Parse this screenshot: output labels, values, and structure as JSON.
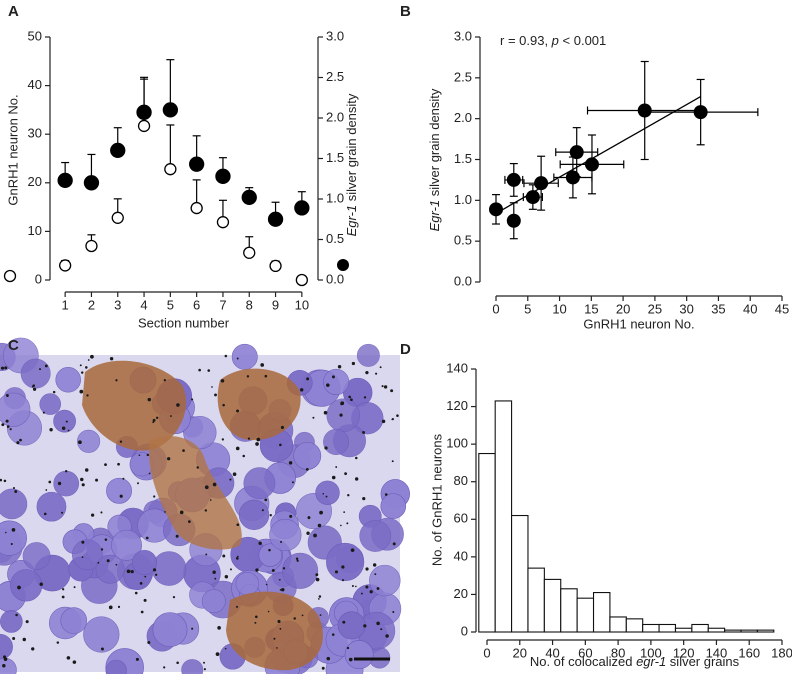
{
  "chart_data": [
    {
      "type": "dual-errorbar",
      "label": "A",
      "x": [
        1,
        2,
        3,
        4,
        5,
        6,
        7,
        8,
        9,
        10
      ],
      "xlim": [
        0.5,
        10.5
      ],
      "xticks": [
        1,
        2,
        3,
        4,
        5,
        6,
        7,
        8,
        9,
        10
      ],
      "xlabel": "Section number",
      "ylabel": "GnRH1 neuron No.",
      "ylim": [
        0,
        50
      ],
      "yticks": [
        0,
        10,
        20,
        30,
        40,
        50
      ],
      "y2label": [
        {
          "text": "Egr-1",
          "italic": true
        },
        {
          "text": " silver grain density"
        }
      ],
      "y2lim": [
        0,
        3
      ],
      "y2ticks": [
        {
          "value": 0,
          "label": "0.0"
        },
        0.5,
        {
          "value": 1,
          "label": "1.0"
        },
        1.5,
        {
          "value": 2,
          "label": "2.0"
        },
        2.5,
        {
          "value": 3,
          "label": "3.0"
        }
      ],
      "series": [
        {
          "marker": "open",
          "color": "#000000",
          "values": [
            3,
            7,
            12.8,
            31.7,
            22.8,
            14.8,
            11.9,
            5.6,
            2.9,
            0
          ],
          "errors": [
            1,
            2.3,
            3.9,
            10,
            9.1,
            5.8,
            4.5,
            3.3,
            1,
            0
          ]
        },
        {
          "marker": "filled",
          "color": "#000000",
          "axis": "y2",
          "values": [
            1.23,
            1.2,
            1.6,
            2.07,
            2.1,
            1.43,
            1.28,
            1.02,
            0.75,
            0.89
          ],
          "errors": [
            0.22,
            0.35,
            0.28,
            0.41,
            0.62,
            0.35,
            0.23,
            0.12,
            0.21,
            0.2
          ]
        }
      ]
    },
    {
      "type": "scatter",
      "label": "B",
      "color": "#000000",
      "annotation": [
        {
          "text": "r = 0.93, "
        },
        {
          "text": "p",
          "italic": true
        },
        {
          "text": " < 0.001"
        }
      ],
      "x": [
        0,
        2.8,
        2.8,
        5.8,
        7.1,
        12.1,
        12.7,
        15.1,
        23.4,
        32.2
      ],
      "xerr": [
        0,
        1.4,
        0,
        1.5,
        2.7,
        3,
        3.3,
        5,
        9,
        9
      ],
      "values": [
        0.89,
        1.25,
        0.75,
        1.04,
        1.21,
        1.28,
        1.59,
        1.44,
        2.1,
        2.08
      ],
      "errors": [
        0.18,
        0.2,
        0.22,
        0.15,
        0.33,
        0.25,
        0.3,
        0.36,
        0.6,
        0.4
      ],
      "fit": {
        "x": [
          0,
          32.2
        ],
        "values": [
          0.84,
          2.27
        ]
      },
      "xlabel": "GnRH1 neuron No.",
      "xlim": [
        0,
        45
      ],
      "xticks": [
        0,
        5,
        10,
        15,
        20,
        25,
        30,
        35,
        40,
        45
      ],
      "ylabel": [
        {
          "text": "Egr-1",
          "italic": true
        },
        {
          "text": " silver grain density"
        }
      ],
      "ylim": [
        0,
        3
      ],
      "yticks": [
        {
          "value": 0,
          "label": "0.0"
        },
        0.5,
        {
          "value": 1,
          "label": "1.0"
        },
        1.5,
        {
          "value": 2,
          "label": "2.0"
        },
        2.5,
        {
          "value": 3,
          "label": "3.0"
        }
      ]
    },
    {
      "type": "histogram",
      "label": "D",
      "color": "#ffffff",
      "bins": [
        -5,
        5,
        15,
        25,
        35,
        45,
        55,
        65,
        75,
        85,
        95,
        105,
        115,
        125,
        135,
        145,
        155,
        165,
        175
      ],
      "values": [
        95,
        123,
        62,
        34,
        28,
        23,
        18,
        21,
        8,
        7,
        4,
        4,
        2,
        4,
        2,
        1,
        1,
        1
      ],
      "xlabel": [
        {
          "text": "No. of colocalized "
        },
        {
          "text": "egr-1",
          "italic": true
        },
        {
          "text": " silver grains"
        }
      ],
      "xlim": [
        0,
        180
      ],
      "xticks": [
        0,
        20,
        40,
        60,
        80,
        100,
        120,
        140,
        160,
        180
      ],
      "ylabel": "No. of GnRH1 neurons",
      "ylim": [
        0,
        140
      ],
      "yticks": [
        0,
        20,
        40,
        60,
        80,
        100,
        120,
        140
      ]
    }
  ],
  "micrograph": {
    "label": "C"
  }
}
